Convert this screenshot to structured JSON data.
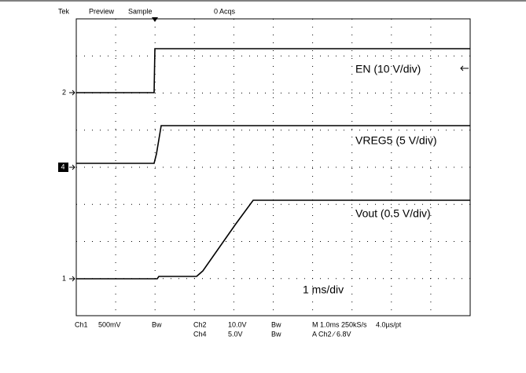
{
  "header": {
    "brand": "Tek",
    "preview": "Preview",
    "mode": "Sample",
    "acquisitions": "0 Acqs"
  },
  "markers": {
    "ch2": "2",
    "ch4": "4",
    "ch1": "1"
  },
  "traces": {
    "en": "EN (10 V/div)",
    "vreg5": "VREG5 (5 V/div)",
    "vout": "Vout (0.5 V/div)"
  },
  "timebase_note": "1 ms/div",
  "footer": {
    "ch1": "Ch1",
    "ch1_scale": "500mV",
    "ch1_bw": "Bw",
    "ch2": "Ch2",
    "ch2_scale": "10.0V",
    "ch2_bw": "Bw",
    "ch4": "Ch4",
    "ch4_scale": "5.0V",
    "ch4_bw": "Bw",
    "horizontal": "M 1.0ms 250kS/s",
    "trigger": "A  Ch2  ∕  6.8V",
    "resolution": "4.0µs/pt"
  }
}
